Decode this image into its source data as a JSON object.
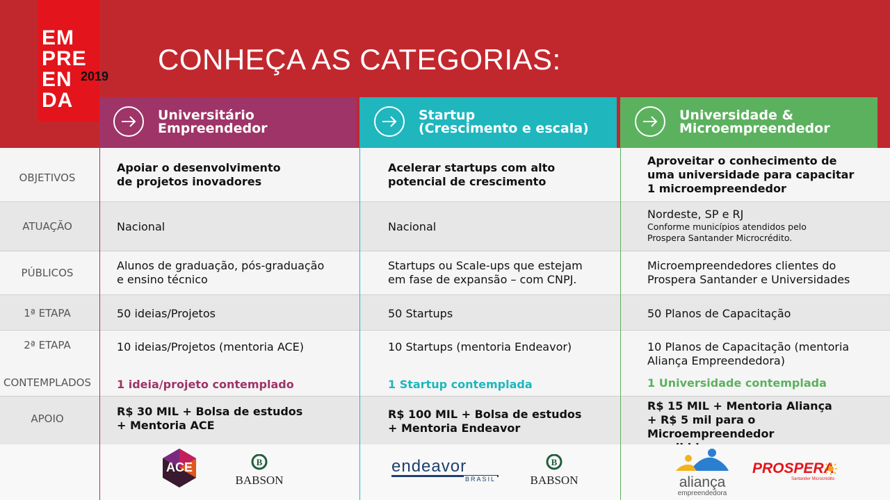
{
  "logo": {
    "word": "EMPREENDA",
    "lines": [
      "EM",
      "PRE",
      "EN",
      "DA"
    ],
    "year": "2019"
  },
  "title": "CONHEÇA AS CATEGORIAS:",
  "categories": [
    {
      "line1": "Universitário",
      "line2": "Empreendedor",
      "color": "#9e3467"
    },
    {
      "line1": "Startup",
      "line2": "(Crescimento e escala)",
      "color": "#1fb6be"
    },
    {
      "line1": "Universidade &",
      "line2": "Microempreendedor",
      "color": "#5cb15e"
    }
  ],
  "rows": {
    "objetivos": {
      "label": "OBJETIVOS",
      "c1": [
        "Apoiar o desenvolvimento",
        "de projetos inovadores"
      ],
      "c2": [
        "Acelerar startups com alto",
        "potencial de crescimento"
      ],
      "c3": [
        "Aproveitar o conhecimento de",
        "uma universidade para capacitar",
        "1 microempreendedor"
      ]
    },
    "atuacao": {
      "label": "ATUAÇÃO",
      "c1": "Nacional",
      "c2": "Nacional",
      "c3": "Nordeste, SP e RJ",
      "c3_note": [
        "Conforme municípios atendidos pelo",
        "Prospera Santander Microcrédito."
      ]
    },
    "publicos": {
      "label": "PÚBLICOS",
      "c1": [
        "Alunos de graduação, pós-graduação",
        "e ensino técnico"
      ],
      "c2": [
        "Startups ou Scale-ups que estejam",
        "em fase de expansão – com CNPJ."
      ],
      "c3": [
        "Microempreendedores clientes do",
        "Prospera Santander e Universidades"
      ]
    },
    "etapa1": {
      "label": "1ª ETAPA",
      "c1": "50 ideias/Projetos",
      "c2": "50 Startups",
      "c3": "50 Planos de Capacitação"
    },
    "etapa2": {
      "label": "2ª ETAPA",
      "c1": "10 ideias/Projetos (mentoria ACE)",
      "c2": "10 Startups (mentoria Endeavor)",
      "c3": [
        "10 Planos de Capacitação (mentoria",
        "Aliança Empreendedora)"
      ]
    },
    "contemplados": {
      "label": "CONTEMPLADOS",
      "c1": "1 ideia/projeto contemplado",
      "c2": "1 Startup contemplada",
      "c3": "1 Universidade contemplada"
    },
    "apoio": {
      "label": "APOIO",
      "c1": [
        "R$ 30 MIL + Bolsa de estudos",
        "+ Mentoria ACE"
      ],
      "c2": [
        "R$ 100 MIL + Bolsa de estudos",
        "+ Mentoria Endeavor"
      ],
      "c3": [
        "R$ 15 MIL + Mentoria Aliança",
        "+ R$ 5 mil para o Microempreendedor",
        "escolhido"
      ]
    }
  },
  "partners": {
    "ace": "ACE",
    "babson": "BABSON",
    "endeavor": "ENDEAVOR",
    "endeavor_sub": "BRASIL",
    "alianca": "aliança",
    "alianca_sub": "empreendedora",
    "prospera": "PROSPERA",
    "prospera_sub": "Santander Microcrédito"
  }
}
